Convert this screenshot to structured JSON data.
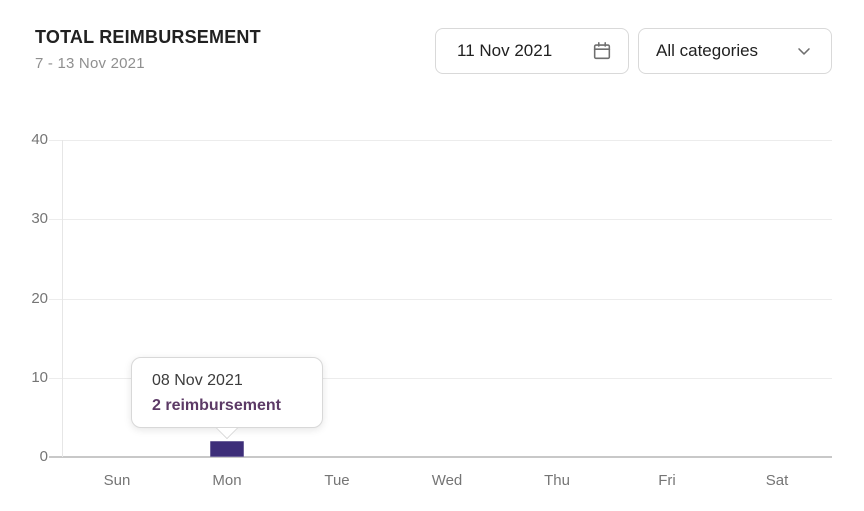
{
  "header": {
    "title": "TOTAL REIMBURSEMENT",
    "subtitle": "7 - 13 Nov 2021"
  },
  "controls": {
    "date_picker": {
      "value": "11 Nov 2021",
      "icon": "calendar-icon"
    },
    "category_dropdown": {
      "value": "All categories",
      "icon": "chevron-down-icon"
    }
  },
  "tooltip": {
    "date": "08 Nov 2021",
    "label": "2 reimbursement",
    "accent_color": "#5c3a66"
  },
  "chart_data": {
    "type": "bar",
    "title": "TOTAL REIMBURSEMENT",
    "categories": [
      "Sun",
      "Mon",
      "Tue",
      "Wed",
      "Thu",
      "Fri",
      "Sat"
    ],
    "values": [
      0,
      2,
      0,
      0,
      0,
      0,
      0
    ],
    "xlabel": "",
    "ylabel": "",
    "ylim": [
      0,
      40
    ],
    "yticks": [
      0,
      10,
      20,
      30,
      40
    ],
    "grid": true,
    "legend": false,
    "bar_color": "#3d2e79",
    "highlighted_point": {
      "category": "Mon",
      "date": "08 Nov 2021",
      "value": 2,
      "unit": "reimbursement"
    }
  }
}
